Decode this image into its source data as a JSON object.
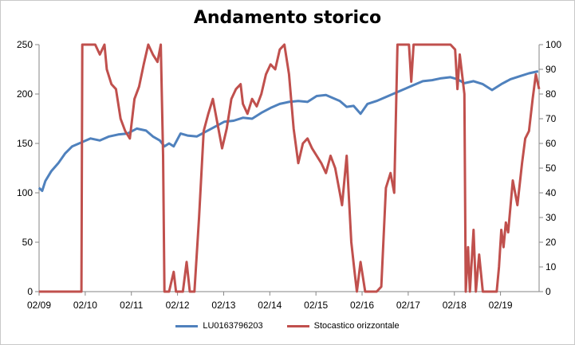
{
  "chart_data": {
    "type": "line",
    "title": "Andamento storico",
    "x_ticks": [
      "02/09",
      "02/10",
      "02/11",
      "02/12",
      "02/13",
      "02/14",
      "02/15",
      "02/16",
      "02/17",
      "02/18",
      "02/19"
    ],
    "y_left": {
      "ticks": [
        "0",
        "50",
        "100",
        "150",
        "200",
        "250"
      ],
      "range": [
        0,
        250
      ]
    },
    "y_right": {
      "ticks": [
        "0",
        "10",
        "20",
        "30",
        "40",
        "50",
        "60",
        "70",
        "80",
        "90",
        "100"
      ],
      "range": [
        0,
        100
      ]
    },
    "x_range": [
      2009.083,
      2019.92
    ],
    "grid": false,
    "legend_position": "bottom",
    "series": [
      {
        "name": "LU0163796203",
        "color": "#4f81bd",
        "axis": "left",
        "points": [
          [
            2009.08,
            105
          ],
          [
            2009.15,
            102
          ],
          [
            2009.22,
            112
          ],
          [
            2009.35,
            122
          ],
          [
            2009.5,
            130
          ],
          [
            2009.65,
            140
          ],
          [
            2009.8,
            147
          ],
          [
            2010.0,
            151
          ],
          [
            2010.2,
            155
          ],
          [
            2010.4,
            153
          ],
          [
            2010.6,
            157
          ],
          [
            2010.8,
            159
          ],
          [
            2011.0,
            160
          ],
          [
            2011.2,
            165
          ],
          [
            2011.4,
            163
          ],
          [
            2011.55,
            157
          ],
          [
            2011.7,
            153
          ],
          [
            2011.8,
            147
          ],
          [
            2011.9,
            150
          ],
          [
            2012.0,
            147
          ],
          [
            2012.15,
            160
          ],
          [
            2012.3,
            158
          ],
          [
            2012.5,
            157
          ],
          [
            2012.7,
            162
          ],
          [
            2012.9,
            167
          ],
          [
            2013.1,
            172
          ],
          [
            2013.3,
            173
          ],
          [
            2013.5,
            176
          ],
          [
            2013.7,
            175
          ],
          [
            2013.9,
            181
          ],
          [
            2014.1,
            186
          ],
          [
            2014.3,
            190
          ],
          [
            2014.5,
            192
          ],
          [
            2014.7,
            193
          ],
          [
            2014.9,
            192
          ],
          [
            2015.1,
            198
          ],
          [
            2015.3,
            199
          ],
          [
            2015.45,
            196
          ],
          [
            2015.6,
            193
          ],
          [
            2015.75,
            187
          ],
          [
            2015.9,
            188
          ],
          [
            2016.05,
            180
          ],
          [
            2016.2,
            190
          ],
          [
            2016.4,
            193
          ],
          [
            2016.6,
            197
          ],
          [
            2016.8,
            201
          ],
          [
            2017.0,
            205
          ],
          [
            2017.2,
            209
          ],
          [
            2017.4,
            213
          ],
          [
            2017.6,
            214
          ],
          [
            2017.8,
            216
          ],
          [
            2018.0,
            217
          ],
          [
            2018.15,
            215
          ],
          [
            2018.3,
            211
          ],
          [
            2018.5,
            213
          ],
          [
            2018.7,
            210
          ],
          [
            2018.9,
            204
          ],
          [
            2019.1,
            210
          ],
          [
            2019.3,
            215
          ],
          [
            2019.5,
            218
          ],
          [
            2019.7,
            221
          ],
          [
            2019.9,
            223
          ]
        ]
      },
      {
        "name": "Stocastico orizzontale",
        "color": "#c0504d",
        "axis": "right",
        "points": [
          [
            2009.08,
            0
          ],
          [
            2009.5,
            0
          ],
          [
            2010.0,
            0
          ],
          [
            2010.02,
            100
          ],
          [
            2010.3,
            100
          ],
          [
            2010.4,
            96
          ],
          [
            2010.5,
            100
          ],
          [
            2010.55,
            90
          ],
          [
            2010.65,
            84
          ],
          [
            2010.75,
            82
          ],
          [
            2010.85,
            70
          ],
          [
            2010.95,
            65
          ],
          [
            2011.05,
            62
          ],
          [
            2011.15,
            78
          ],
          [
            2011.25,
            83
          ],
          [
            2011.35,
            92
          ],
          [
            2011.45,
            100
          ],
          [
            2011.55,
            96
          ],
          [
            2011.65,
            93
          ],
          [
            2011.72,
            100
          ],
          [
            2011.77,
            55
          ],
          [
            2011.8,
            0
          ],
          [
            2011.9,
            0
          ],
          [
            2012.0,
            8
          ],
          [
            2012.05,
            0
          ],
          [
            2012.2,
            0
          ],
          [
            2012.28,
            12
          ],
          [
            2012.35,
            0
          ],
          [
            2012.45,
            0
          ],
          [
            2012.55,
            30
          ],
          [
            2012.65,
            65
          ],
          [
            2012.75,
            72
          ],
          [
            2012.85,
            78
          ],
          [
            2012.95,
            68
          ],
          [
            2013.05,
            58
          ],
          [
            2013.15,
            66
          ],
          [
            2013.25,
            78
          ],
          [
            2013.35,
            82
          ],
          [
            2013.45,
            84
          ],
          [
            2013.5,
            76
          ],
          [
            2013.6,
            72
          ],
          [
            2013.7,
            78
          ],
          [
            2013.8,
            75
          ],
          [
            2013.9,
            80
          ],
          [
            2014.0,
            88
          ],
          [
            2014.1,
            92
          ],
          [
            2014.2,
            90
          ],
          [
            2014.3,
            98
          ],
          [
            2014.4,
            100
          ],
          [
            2014.5,
            88
          ],
          [
            2014.6,
            66
          ],
          [
            2014.7,
            52
          ],
          [
            2014.8,
            60
          ],
          [
            2014.9,
            62
          ],
          [
            2015.0,
            58
          ],
          [
            2015.1,
            55
          ],
          [
            2015.2,
            52
          ],
          [
            2015.3,
            48
          ],
          [
            2015.4,
            55
          ],
          [
            2015.5,
            50
          ],
          [
            2015.6,
            40
          ],
          [
            2015.65,
            35
          ],
          [
            2015.75,
            55
          ],
          [
            2015.85,
            20
          ],
          [
            2015.92,
            8
          ],
          [
            2015.97,
            0
          ],
          [
            2016.05,
            12
          ],
          [
            2016.15,
            0
          ],
          [
            2016.3,
            0
          ],
          [
            2016.4,
            0
          ],
          [
            2016.5,
            2
          ],
          [
            2016.6,
            42
          ],
          [
            2016.7,
            48
          ],
          [
            2016.78,
            40
          ],
          [
            2016.85,
            100
          ],
          [
            2017.0,
            100
          ],
          [
            2017.1,
            100
          ],
          [
            2017.15,
            85
          ],
          [
            2017.2,
            100
          ],
          [
            2017.4,
            100
          ],
          [
            2017.6,
            100
          ],
          [
            2017.8,
            100
          ],
          [
            2018.0,
            100
          ],
          [
            2018.1,
            98
          ],
          [
            2018.15,
            82
          ],
          [
            2018.2,
            96
          ],
          [
            2018.25,
            88
          ],
          [
            2018.3,
            80
          ],
          [
            2018.33,
            0
          ],
          [
            2018.38,
            18
          ],
          [
            2018.42,
            0
          ],
          [
            2018.5,
            25
          ],
          [
            2018.55,
            0
          ],
          [
            2018.62,
            15
          ],
          [
            2018.7,
            0
          ],
          [
            2018.8,
            0
          ],
          [
            2018.9,
            0
          ],
          [
            2019.0,
            0
          ],
          [
            2019.05,
            10
          ],
          [
            2019.1,
            25
          ],
          [
            2019.15,
            18
          ],
          [
            2019.2,
            28
          ],
          [
            2019.25,
            24
          ],
          [
            2019.35,
            45
          ],
          [
            2019.45,
            35
          ],
          [
            2019.55,
            52
          ],
          [
            2019.62,
            62
          ],
          [
            2019.7,
            65
          ],
          [
            2019.78,
            78
          ],
          [
            2019.85,
            88
          ],
          [
            2019.92,
            82
          ]
        ]
      }
    ]
  }
}
